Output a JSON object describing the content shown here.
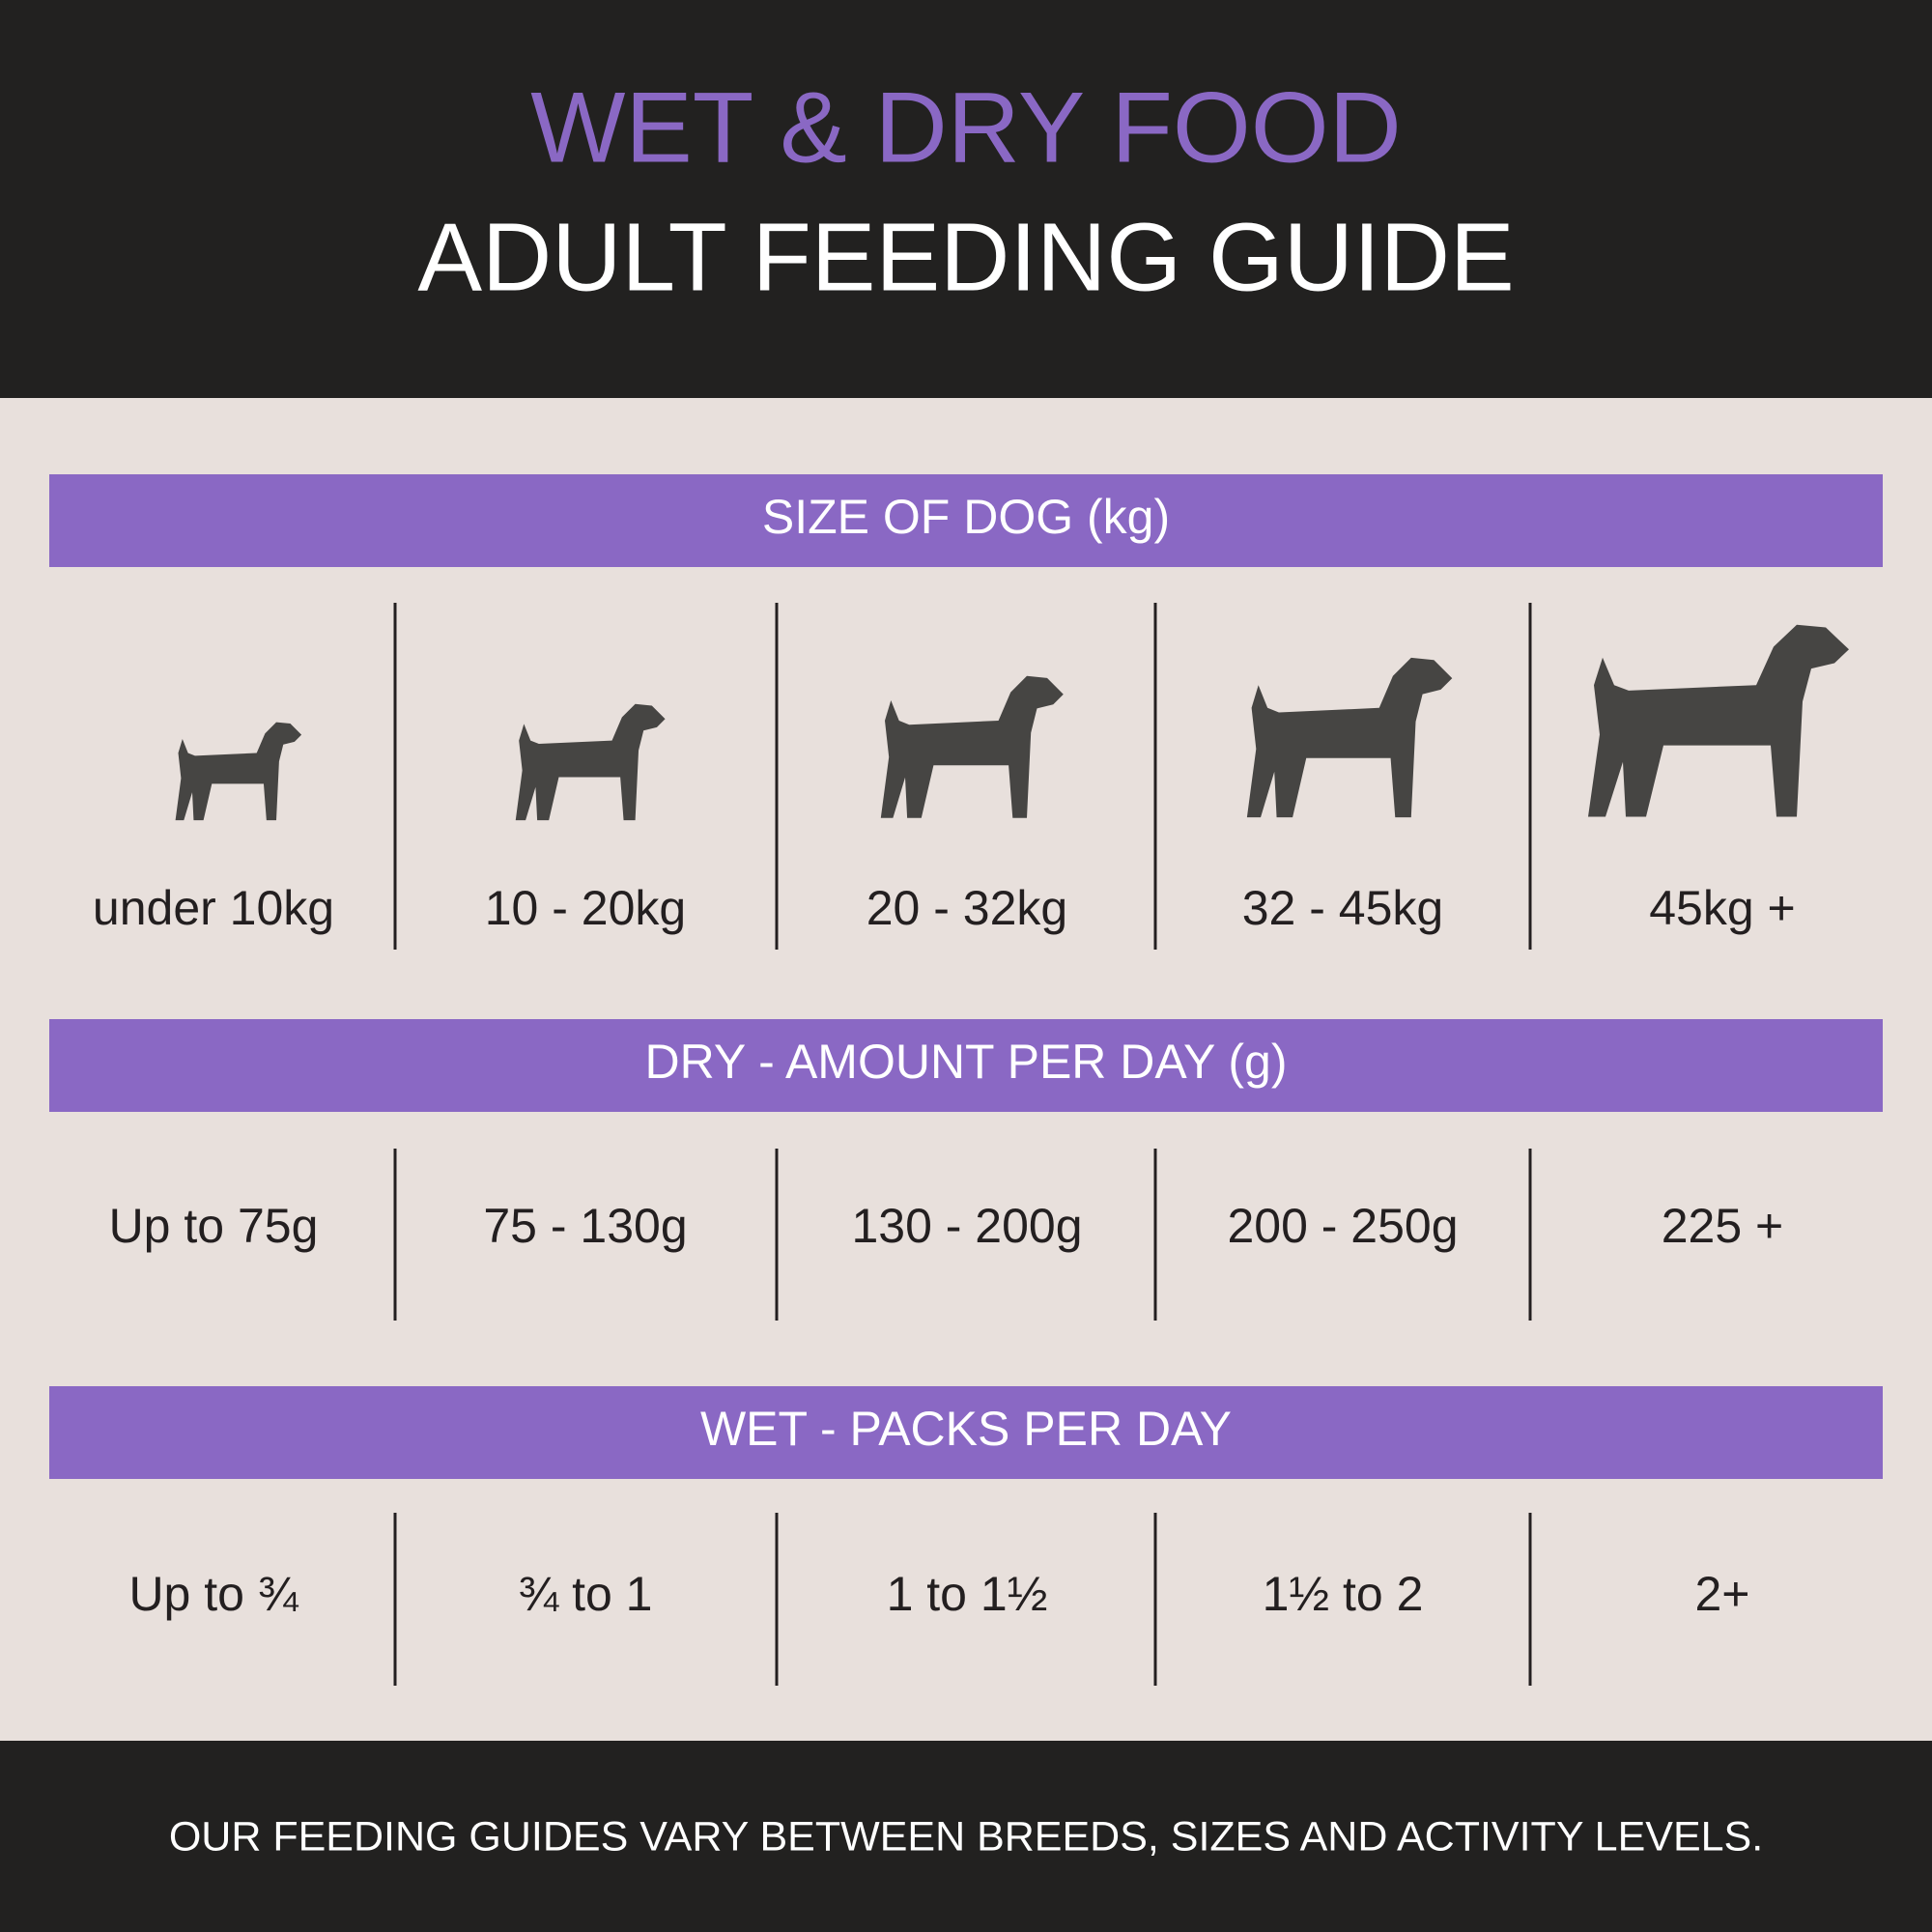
{
  "header": {
    "title": "WET & DRY FOOD",
    "subtitle": "ADULT FEEDING GUIDE"
  },
  "sections": [
    {
      "heading": "SIZE OF DOG (kg)",
      "cells": [
        "under 10kg",
        "10 - 20kg",
        "20 - 32kg",
        "32 - 45kg",
        "45kg +"
      ]
    },
    {
      "heading": "DRY - AMOUNT PER DAY (g)",
      "cells": [
        "Up to 75g",
        "75 - 130g",
        "130 - 200g",
        "200 - 250g",
        "225 +"
      ]
    },
    {
      "heading": "WET - PACKS PER DAY",
      "cells": [
        "Up to ¾",
        "¾ to 1",
        "1 to 1½",
        "1½ to 2",
        "2+"
      ]
    }
  ],
  "footer": "OUR FEEDING GUIDES VARY BETWEEN BREEDS, SIZES AND ACTIVITY LEVELS."
}
